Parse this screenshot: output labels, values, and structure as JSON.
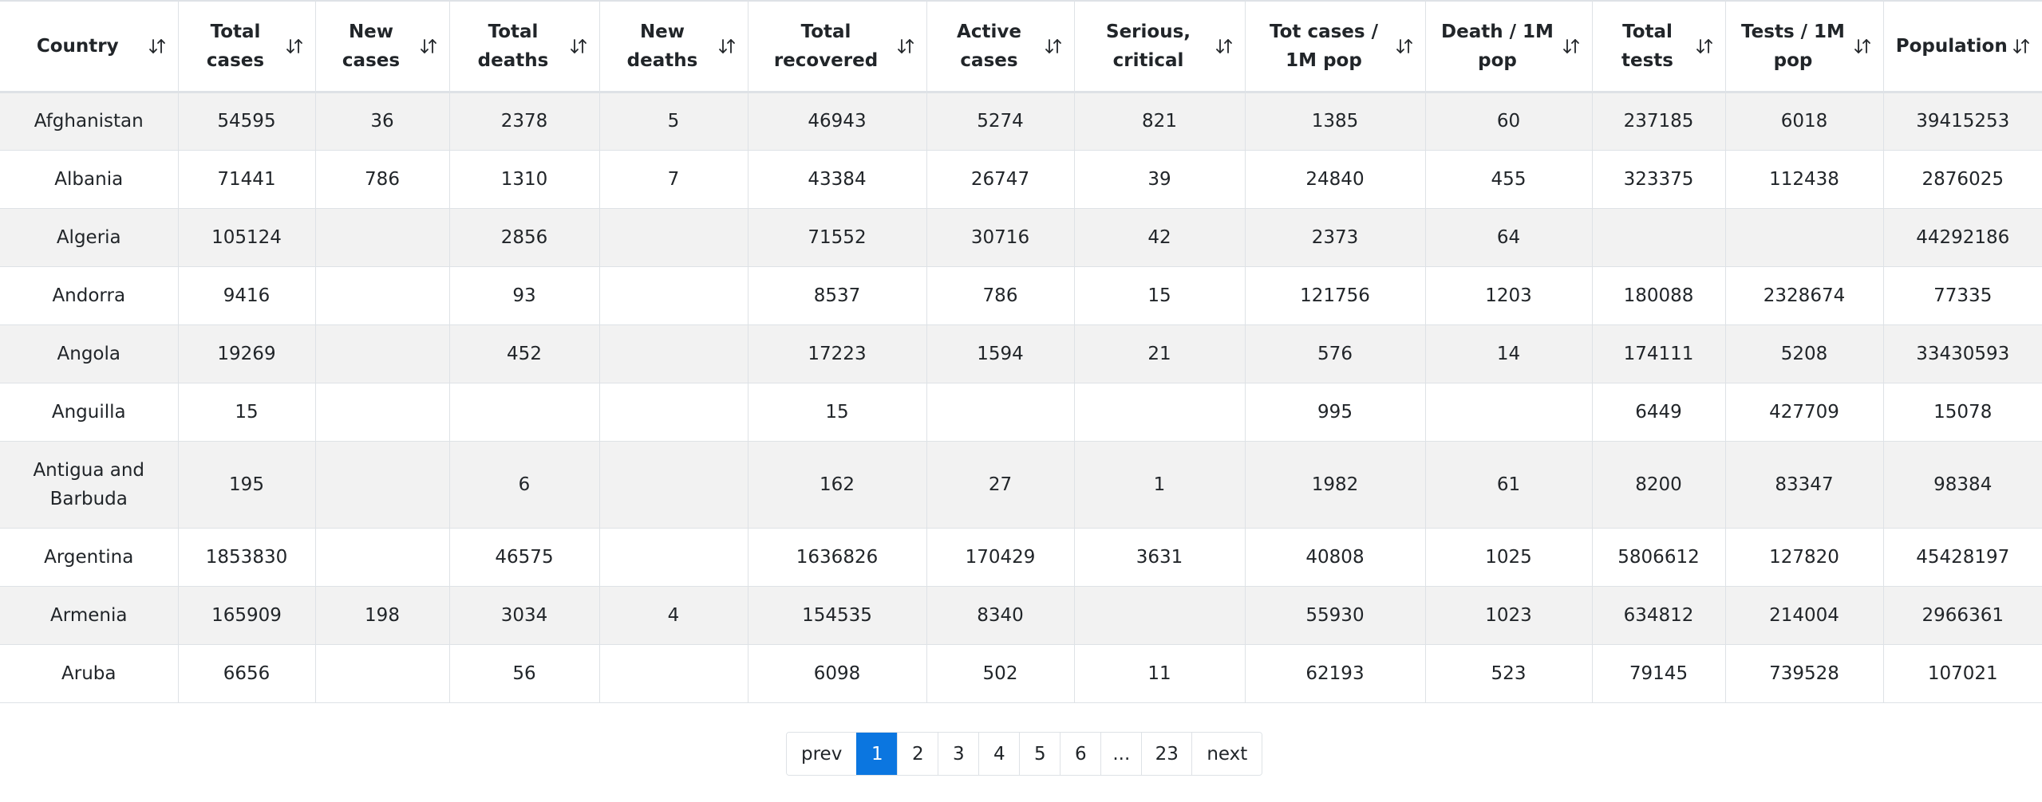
{
  "table": {
    "columns": [
      [
        "Country"
      ],
      [
        "Total",
        "cases"
      ],
      [
        "New",
        "cases"
      ],
      [
        "Total",
        "deaths"
      ],
      [
        "New",
        "deaths"
      ],
      [
        "Total",
        "recovered"
      ],
      [
        "Active",
        "cases"
      ],
      [
        "Serious,",
        "critical"
      ],
      [
        "Tot cases /",
        "1M pop"
      ],
      [
        "Death / 1M",
        "pop"
      ],
      [
        "Total",
        "tests"
      ],
      [
        "Tests / 1M",
        "pop"
      ],
      [
        "Population"
      ]
    ],
    "column_names": [
      "country",
      "total-cases",
      "new-cases",
      "total-deaths",
      "new-deaths",
      "total-recovered",
      "active-cases",
      "serious-critical",
      "tot-cases-per-1m",
      "deaths-per-1m",
      "total-tests",
      "tests-per-1m",
      "population"
    ],
    "sort_icon": "sort-up-down-icon",
    "rows": [
      [
        "Afghanistan",
        "54595",
        "36",
        "2378",
        "5",
        "46943",
        "5274",
        "821",
        "1385",
        "60",
        "237185",
        "6018",
        "39415253"
      ],
      [
        "Albania",
        "71441",
        "786",
        "1310",
        "7",
        "43384",
        "26747",
        "39",
        "24840",
        "455",
        "323375",
        "112438",
        "2876025"
      ],
      [
        "Algeria",
        "105124",
        "",
        "2856",
        "",
        "71552",
        "30716",
        "42",
        "2373",
        "64",
        "",
        "",
        "44292186"
      ],
      [
        "Andorra",
        "9416",
        "",
        "93",
        "",
        "8537",
        "786",
        "15",
        "121756",
        "1203",
        "180088",
        "2328674",
        "77335"
      ],
      [
        "Angola",
        "19269",
        "",
        "452",
        "",
        "17223",
        "1594",
        "21",
        "576",
        "14",
        "174111",
        "5208",
        "33430593"
      ],
      [
        "Anguilla",
        "15",
        "",
        "",
        "",
        "15",
        "",
        "",
        "995",
        "",
        "6449",
        "427709",
        "15078"
      ],
      [
        "Antigua and Barbuda",
        "195",
        "",
        "6",
        "",
        "162",
        "27",
        "1",
        "1982",
        "61",
        "8200",
        "83347",
        "98384"
      ],
      [
        "Argentina",
        "1853830",
        "",
        "46575",
        "",
        "1636826",
        "170429",
        "3631",
        "40808",
        "1025",
        "5806612",
        "127820",
        "45428197"
      ],
      [
        "Armenia",
        "165909",
        "198",
        "3034",
        "4",
        "154535",
        "8340",
        "",
        "55930",
        "1023",
        "634812",
        "214004",
        "2966361"
      ],
      [
        "Aruba",
        "6656",
        "",
        "56",
        "",
        "6098",
        "502",
        "11",
        "62193",
        "523",
        "79145",
        "739528",
        "107021"
      ]
    ]
  },
  "pagination": {
    "prev_label": "prev",
    "next_label": "next",
    "pages": [
      "1",
      "2",
      "3",
      "4",
      "5",
      "6",
      "...",
      "23"
    ],
    "current": "1",
    "active_color": "#0b76e0"
  }
}
